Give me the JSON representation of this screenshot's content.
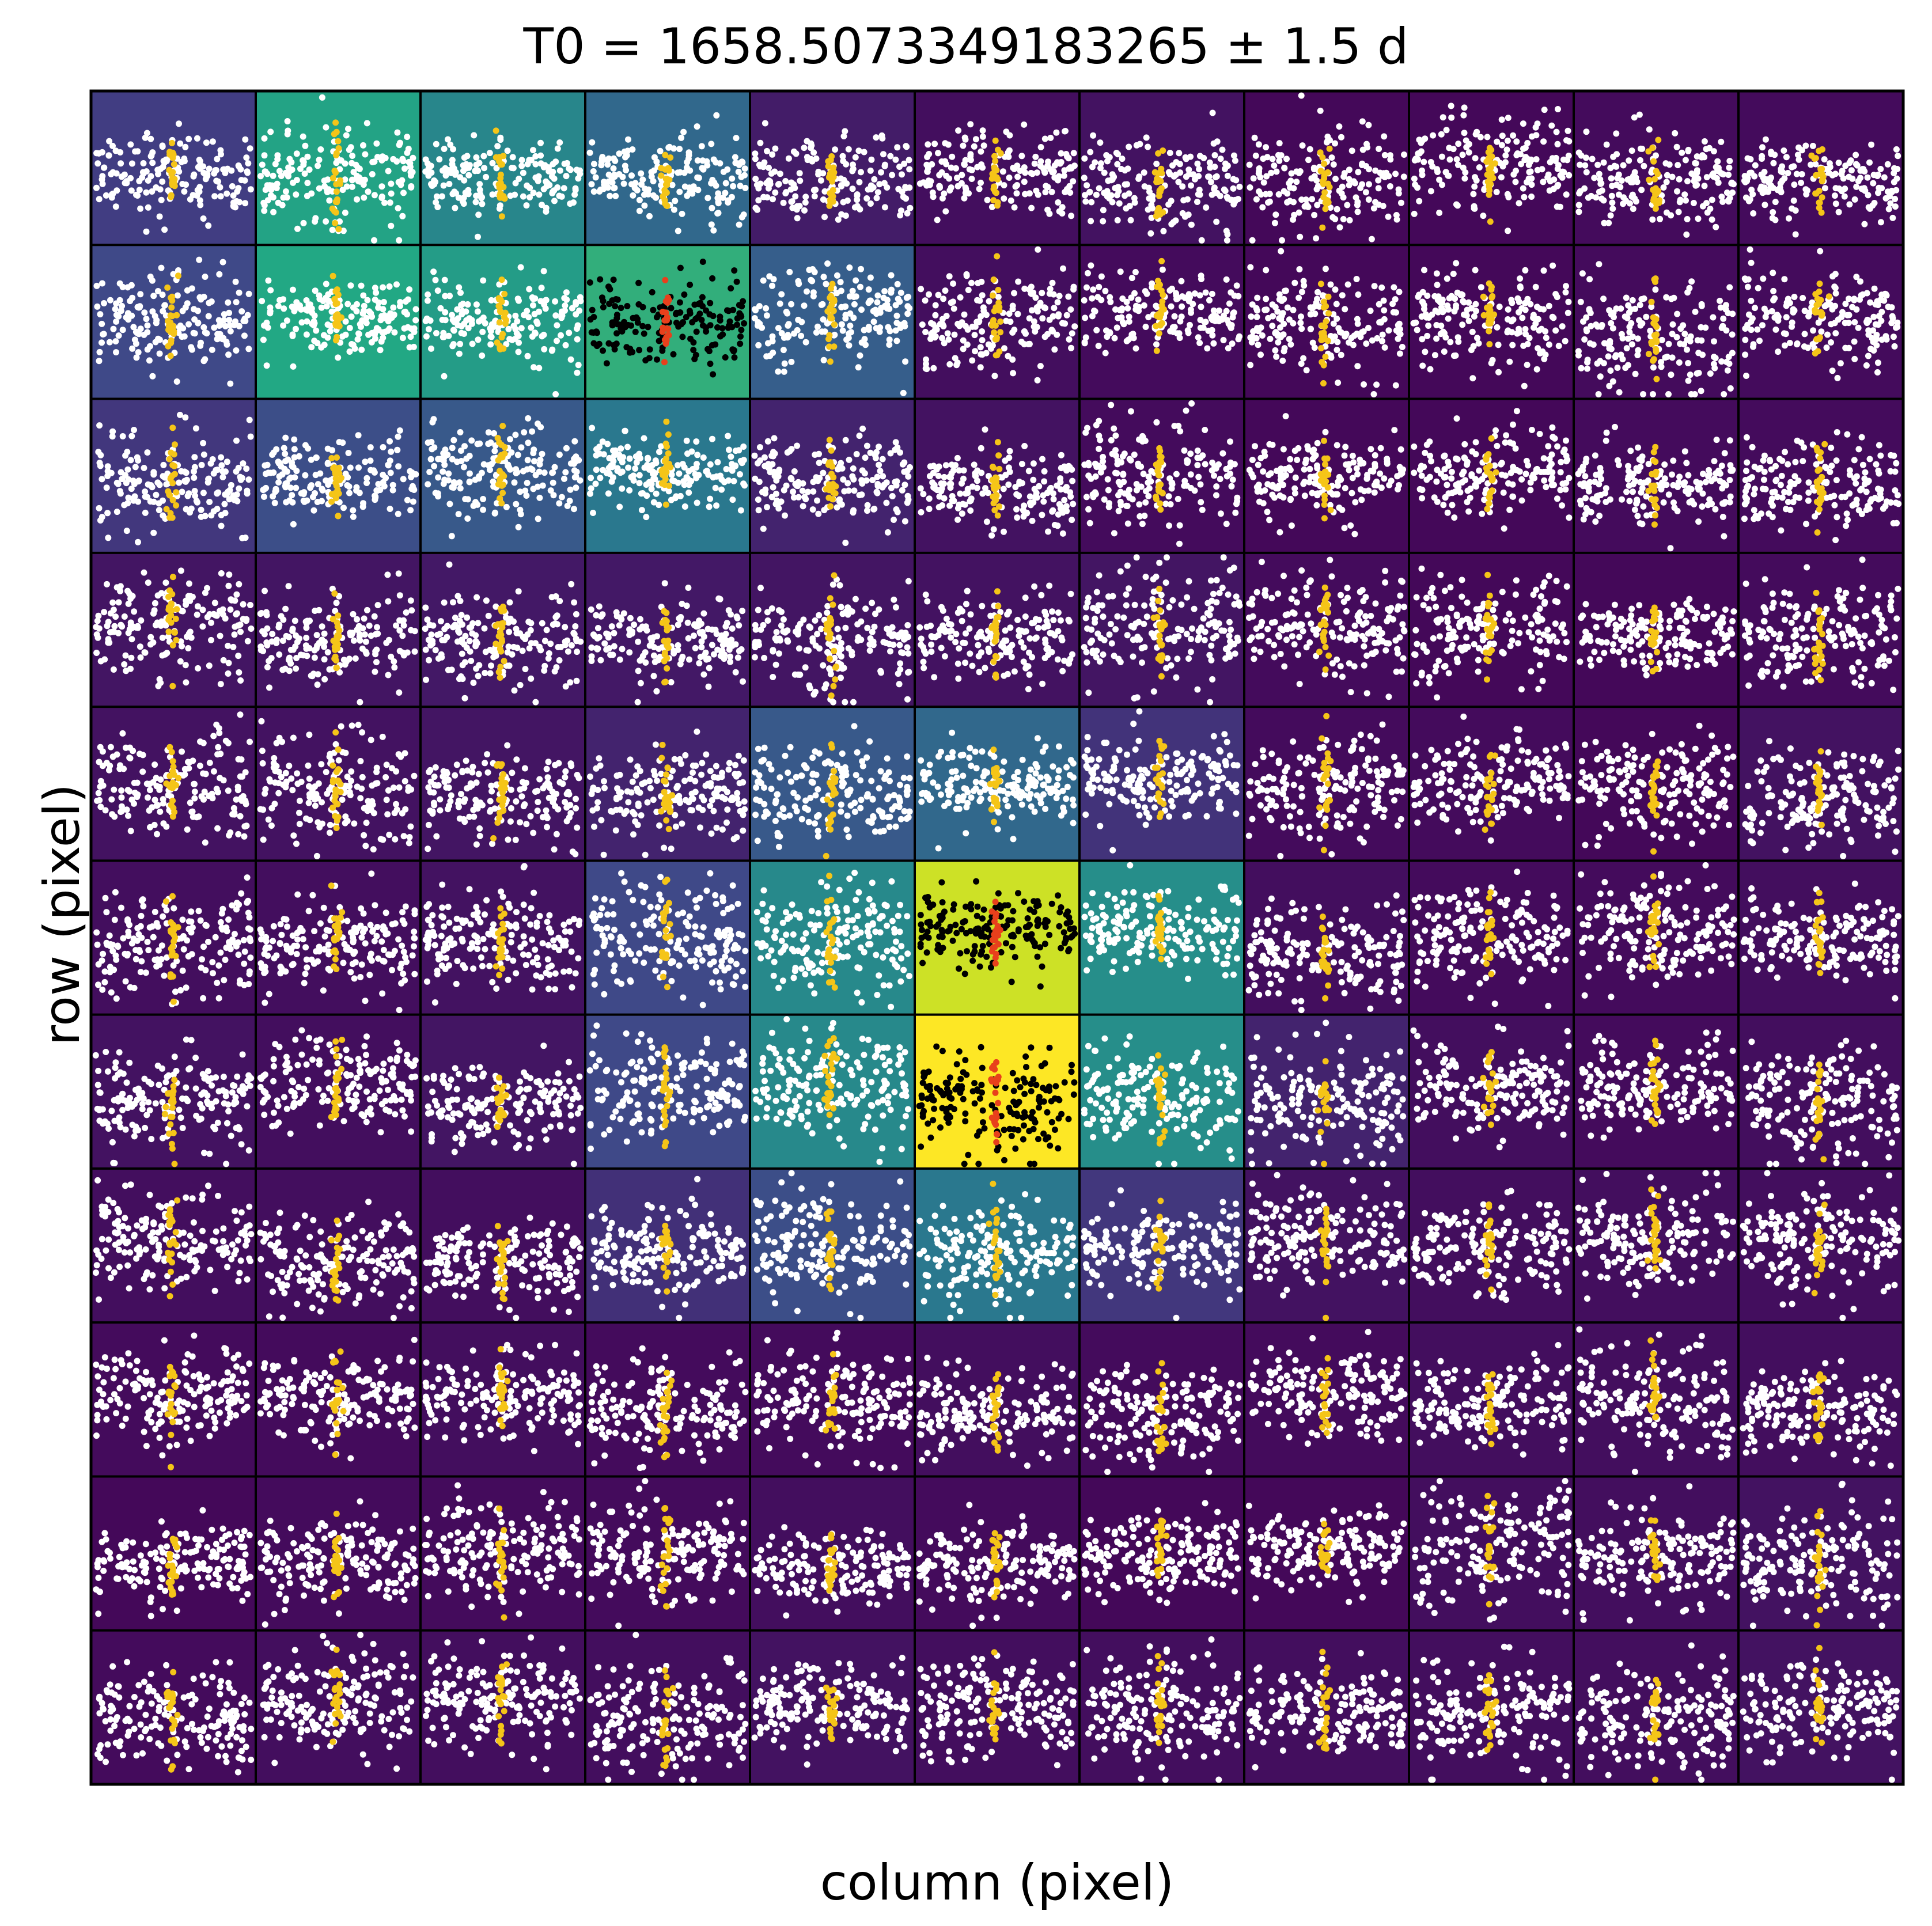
{
  "chart_data": {
    "type": "scatter",
    "layout": "grid",
    "title": "T0 = 1658.5073349183265 ± 1.5 d",
    "xlabel": "column (pixel)",
    "ylabel": "row (pixel)",
    "rows": 11,
    "cols": 11,
    "colormap": "viridis",
    "cell_colors": [
      "#440154",
      "#414487",
      "#2a788e",
      "#22a884",
      "#bddf26",
      "#fde725"
    ],
    "point_colors": {
      "out_of_transit": "#ffffff",
      "in_transit": "#f5c518",
      "highlighted_out": "#000000",
      "highlighted_in": "#e8401c"
    },
    "ticks": "none",
    "pixel_flux_rank": [
      [
        0.18,
        0.58,
        0.46,
        0.34,
        0.08,
        0.04,
        0.05,
        0.02,
        0.02,
        0.03,
        0.03
      ],
      [
        0.22,
        0.6,
        0.55,
        0.62,
        0.3,
        0.04,
        0.03,
        0.02,
        0.02,
        0.03,
        0.03
      ],
      [
        0.16,
        0.24,
        0.28,
        0.4,
        0.1,
        0.05,
        0.03,
        0.02,
        0.02,
        0.03,
        0.03
      ],
      [
        0.06,
        0.06,
        0.07,
        0.07,
        0.06,
        0.05,
        0.06,
        0.03,
        0.02,
        0.02,
        0.03
      ],
      [
        0.05,
        0.05,
        0.06,
        0.1,
        0.28,
        0.34,
        0.15,
        0.03,
        0.03,
        0.02,
        0.05
      ],
      [
        0.04,
        0.04,
        0.05,
        0.22,
        0.47,
        0.85,
        0.49,
        0.04,
        0.03,
        0.03,
        0.04
      ],
      [
        0.05,
        0.04,
        0.06,
        0.22,
        0.47,
        1.0,
        0.49,
        0.1,
        0.04,
        0.03,
        0.04
      ],
      [
        0.04,
        0.04,
        0.04,
        0.14,
        0.24,
        0.4,
        0.16,
        0.05,
        0.04,
        0.04,
        0.04
      ],
      [
        0.03,
        0.03,
        0.04,
        0.03,
        0.03,
        0.04,
        0.03,
        0.03,
        0.04,
        0.04,
        0.04
      ],
      [
        0.02,
        0.03,
        0.03,
        0.03,
        0.04,
        0.03,
        0.02,
        0.02,
        0.04,
        0.04,
        0.05
      ],
      [
        0.03,
        0.04,
        0.04,
        0.04,
        0.05,
        0.04,
        0.04,
        0.04,
        0.04,
        0.04,
        0.05
      ]
    ],
    "highlighted_pixels": [
      [
        1,
        3
      ],
      [
        5,
        5
      ],
      [
        6,
        5
      ]
    ]
  }
}
